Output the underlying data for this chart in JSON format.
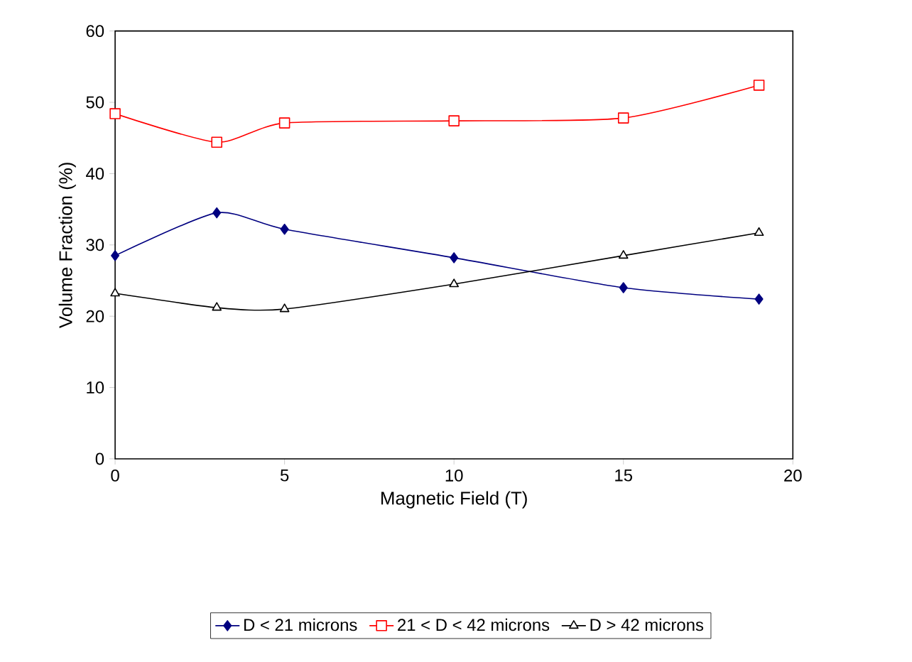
{
  "chart_data": {
    "type": "line",
    "xlabel": "Magnetic Field (T)",
    "ylabel": "Volume Fraction (%)",
    "x": [
      0,
      3,
      5,
      10,
      15,
      19
    ],
    "series": [
      {
        "name": "D < 21 microns",
        "color": "#000080",
        "marker": "diamond",
        "values": [
          28.5,
          34.5,
          32.2,
          28.2,
          24.0,
          22.4
        ]
      },
      {
        "name": "21 < D < 42 microns",
        "color": "#ff0000",
        "marker": "square",
        "values": [
          48.4,
          44.4,
          47.1,
          47.4,
          47.8,
          52.4
        ]
      },
      {
        "name": "D > 42 microns",
        "color": "#000000",
        "marker": "triangle",
        "values": [
          23.2,
          21.2,
          21.0,
          24.5,
          28.5,
          31.7
        ]
      }
    ],
    "xlim": [
      0,
      20
    ],
    "xticks": [
      0,
      5,
      10,
      15,
      20
    ],
    "ylim": [
      0,
      60
    ],
    "yticks": [
      0,
      10,
      20,
      30,
      40,
      50,
      60
    ],
    "grid": false,
    "legend": "bottom",
    "line_style": "solid"
  }
}
